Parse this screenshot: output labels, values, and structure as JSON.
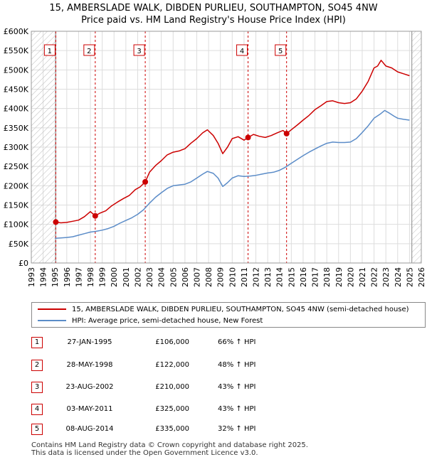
{
  "title_line1": "15, AMBERSLADE WALK, DIBDEN PURLIEU, SOUTHAMPTON, SO45 4NW",
  "title_line2": "Price paid vs. HM Land Registry's House Price Index (HPI)",
  "colors": {
    "property": "#cc0000",
    "hpi": "#5b8cc8",
    "grid": "#dddddd",
    "hatch": "#bbbbbb",
    "marker": "#cc0000"
  },
  "chart_data": {
    "type": "line",
    "xlim": [
      1993,
      2026
    ],
    "ylim": [
      0,
      600000
    ],
    "yticks": [
      0,
      50000,
      100000,
      150000,
      200000,
      250000,
      300000,
      350000,
      400000,
      450000,
      500000,
      550000,
      600000
    ],
    "ytick_labels": [
      "£0",
      "£50K",
      "£100K",
      "£150K",
      "£200K",
      "£250K",
      "£300K",
      "£350K",
      "£400K",
      "£450K",
      "£500K",
      "£550K",
      "£600K"
    ],
    "xticks": [
      1993,
      1994,
      1995,
      1996,
      1997,
      1998,
      1999,
      2000,
      2001,
      2002,
      2003,
      2004,
      2005,
      2006,
      2007,
      2008,
      2009,
      2010,
      2011,
      2012,
      2013,
      2014,
      2015,
      2016,
      2017,
      2018,
      2019,
      2020,
      2021,
      2022,
      2023,
      2024,
      2025,
      2026
    ],
    "xtick_labels": [
      "1993",
      "1994",
      "1995",
      "1996",
      "1997",
      "1998",
      "1999",
      "2000",
      "2001",
      "2002",
      "2003",
      "2004",
      "2005",
      "2006",
      "2007",
      "2008",
      "2009",
      "2010",
      "2011",
      "2012",
      "2013",
      "2014",
      "2015",
      "2016",
      "2017",
      "2018",
      "2019",
      "2020",
      "2021",
      "2022",
      "2023",
      "2024",
      "2025",
      "2026"
    ],
    "hatch_before": 1995.07,
    "hatch_after": 2025.2,
    "series": [
      {
        "name": "15, AMBERSLADE WALK, DIBDEN PURLIEU, SOUTHAMPTON, SO45 4NW (semi-detached house)",
        "color": "#cc0000",
        "x": [
          1995.07,
          1995.5,
          1996.0,
          1996.5,
          1997.0,
          1997.5,
          1998.0,
          1998.41,
          1998.8,
          1999.3,
          1999.8,
          2000.3,
          2000.8,
          2001.3,
          2001.8,
          2002.2,
          2002.64,
          2003.0,
          2003.5,
          2004.0,
          2004.5,
          2005.0,
          2005.5,
          2006.0,
          2006.5,
          2007.0,
          2007.5,
          2007.9,
          2008.4,
          2008.8,
          2009.2,
          2009.6,
          2010.0,
          2010.5,
          2011.0,
          2011.34,
          2011.8,
          2012.3,
          2012.8,
          2013.3,
          2013.8,
          2014.3,
          2014.6,
          2015.0,
          2015.5,
          2016.0,
          2016.5,
          2017.0,
          2017.5,
          2018.0,
          2018.5,
          2019.0,
          2019.5,
          2020.0,
          2020.5,
          2021.0,
          2021.5,
          2022.0,
          2022.3,
          2022.6,
          2023.0,
          2023.5,
          2024.0,
          2024.5,
          2025.0
        ],
        "values": [
          106000,
          104000,
          105000,
          108000,
          111000,
          120000,
          133000,
          122000,
          129000,
          135000,
          148000,
          158000,
          167000,
          175000,
          190000,
          197000,
          210000,
          235000,
          252000,
          265000,
          280000,
          287000,
          290000,
          296000,
          310000,
          322000,
          337000,
          345000,
          330000,
          310000,
          283000,
          300000,
          322000,
          327000,
          318000,
          325000,
          333000,
          328000,
          325000,
          330000,
          337000,
          343000,
          335000,
          345000,
          357000,
          370000,
          382000,
          397000,
          407000,
          418000,
          420000,
          415000,
          413000,
          415000,
          425000,
          445000,
          470000,
          505000,
          510000,
          525000,
          510000,
          505000,
          495000,
          490000,
          485000
        ]
      },
      {
        "name": "HPI: Average price, semi-detached house, New Forest",
        "color": "#5b8cc8",
        "x": [
          1995.0,
          1995.5,
          1996.0,
          1996.5,
          1997.0,
          1997.5,
          1998.0,
          1998.5,
          1999.0,
          1999.5,
          2000.0,
          2000.5,
          2001.0,
          2001.5,
          2002.0,
          2002.5,
          2003.0,
          2003.5,
          2004.0,
          2004.5,
          2005.0,
          2005.5,
          2006.0,
          2006.5,
          2007.0,
          2007.5,
          2007.9,
          2008.4,
          2008.8,
          2009.2,
          2009.6,
          2010.0,
          2010.5,
          2011.0,
          2011.5,
          2012.0,
          2012.5,
          2013.0,
          2013.5,
          2014.0,
          2014.5,
          2015.0,
          2015.5,
          2016.0,
          2016.5,
          2017.0,
          2017.5,
          2018.0,
          2018.5,
          2019.0,
          2019.5,
          2020.0,
          2020.5,
          2021.0,
          2021.5,
          2022.0,
          2022.5,
          2022.9,
          2023.3,
          2023.7,
          2024.0,
          2024.5,
          2025.0
        ],
        "values": [
          64000,
          65000,
          66000,
          68000,
          72000,
          76000,
          80000,
          82000,
          85000,
          89000,
          95000,
          103000,
          110000,
          117000,
          126000,
          138000,
          155000,
          170000,
          182000,
          193000,
          200000,
          202000,
          204000,
          210000,
          220000,
          230000,
          237000,
          232000,
          220000,
          198000,
          208000,
          220000,
          226000,
          224000,
          225000,
          227000,
          230000,
          233000,
          235000,
          240000,
          248000,
          258000,
          268000,
          278000,
          287000,
          295000,
          303000,
          310000,
          313000,
          312000,
          312000,
          313000,
          322000,
          338000,
          355000,
          375000,
          385000,
          395000,
          388000,
          380000,
          375000,
          372000,
          370000
        ]
      }
    ],
    "sales": [
      {
        "label": "1",
        "x": 1995.07,
        "price": 106000
      },
      {
        "label": "2",
        "x": 1998.41,
        "price": 122000
      },
      {
        "label": "3",
        "x": 2002.64,
        "price": 210000
      },
      {
        "label": "4",
        "x": 2011.34,
        "price": 325000
      },
      {
        "label": "5",
        "x": 2014.6,
        "price": 335000
      }
    ]
  },
  "legend": {
    "property": "15, AMBERSLADE WALK, DIBDEN PURLIEU, SOUTHAMPTON, SO45 4NW (semi-detached house)",
    "hpi": "HPI: Average price, semi-detached house, New Forest"
  },
  "sales_table": [
    {
      "num": "1",
      "date": "27-JAN-1995",
      "price": "£106,000",
      "hpi": "66% ↑ HPI"
    },
    {
      "num": "2",
      "date": "28-MAY-1998",
      "price": "£122,000",
      "hpi": "48% ↑ HPI"
    },
    {
      "num": "3",
      "date": "23-AUG-2002",
      "price": "£210,000",
      "hpi": "43% ↑ HPI"
    },
    {
      "num": "4",
      "date": "03-MAY-2011",
      "price": "£325,000",
      "hpi": "43% ↑ HPI"
    },
    {
      "num": "5",
      "date": "08-AUG-2014",
      "price": "£335,000",
      "hpi": "32% ↑ HPI"
    }
  ],
  "footer_line1": "Contains HM Land Registry data © Crown copyright and database right 2025.",
  "footer_line2": "This data is licensed under the Open Government Licence v3.0."
}
